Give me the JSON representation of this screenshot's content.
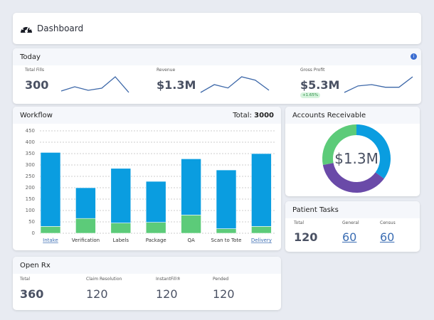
{
  "header": {
    "title": "Dashboard",
    "icon": "speedometer-icon"
  },
  "today": {
    "title": "Today",
    "metrics": [
      {
        "label": "Total Fills",
        "value": "300",
        "trend": [
          2,
          8,
          3,
          6,
          22,
          0
        ]
      },
      {
        "label": "Revenue",
        "value": "$1.3M",
        "trend": [
          0,
          7,
          4,
          14,
          11,
          2
        ]
      },
      {
        "label": "Gross Profit",
        "value": "$5.3M",
        "badge": "+1.65%",
        "trend": [
          0,
          5,
          6,
          4,
          4,
          12
        ]
      }
    ]
  },
  "workflow": {
    "title": "Workflow",
    "total_label": "Total:",
    "total_value": "3000"
  },
  "chart_data": {
    "type": "bar",
    "stacked": true,
    "ylim": [
      0,
      450
    ],
    "yticks": [
      0,
      50,
      100,
      150,
      200,
      250,
      300,
      350,
      400,
      450
    ],
    "categories": [
      "Intake",
      "Verification",
      "Labels",
      "Package",
      "QA",
      "Scan to Tote",
      "Delivery"
    ],
    "linked": [
      true,
      false,
      false,
      false,
      false,
      false,
      true
    ],
    "series": [
      {
        "name": "Green",
        "color": "#5ccb79",
        "values": [
          30,
          65,
          45,
          48,
          80,
          20,
          30
        ]
      },
      {
        "name": "Blue",
        "color": "#0a9de0",
        "values": [
          325,
          135,
          240,
          180,
          247,
          258,
          320
        ]
      }
    ]
  },
  "ar": {
    "title": "Accounts Receivable",
    "value": "$1.3M",
    "slices": [
      {
        "color": "#0a9de0",
        "value": 35
      },
      {
        "color": "#6a4aa8",
        "value": 37
      },
      {
        "color": "#5ccb79",
        "value": 28
      }
    ]
  },
  "tasks": {
    "title": "Patient Tasks",
    "total_label": "Total",
    "total": "120",
    "general_label": "General",
    "general": "60",
    "census_label": "Census",
    "census": "60"
  },
  "openrx": {
    "title": "Open Rx",
    "total_label": "Total",
    "total": "360",
    "claim_label": "Claim Resolution",
    "claim": "120",
    "instant_label": "InstantFill®",
    "instant": "120",
    "pended_label": "Pended",
    "pended": "120"
  }
}
